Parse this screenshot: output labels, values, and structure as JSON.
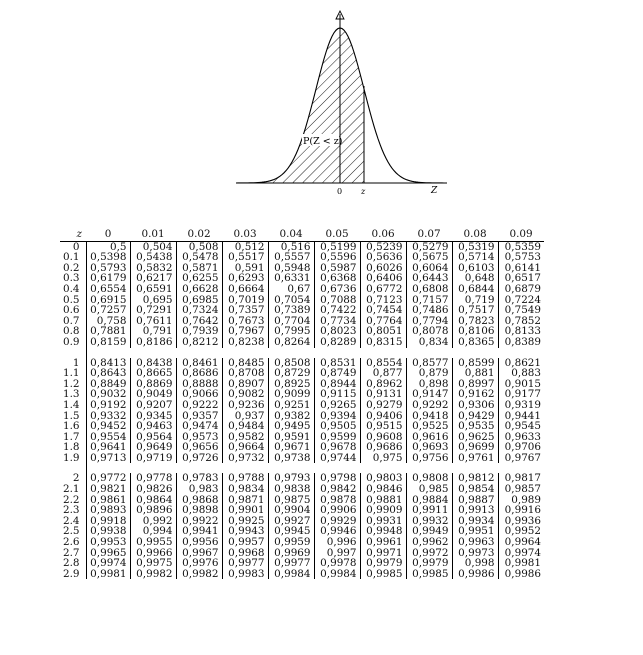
{
  "figure": {
    "curve_label": "P(Z < z)",
    "axis_origin_label": "0",
    "axis_z_label": "z",
    "axis_end_label": "Z"
  },
  "table": {
    "corner_label": "z",
    "columns": [
      "0",
      "0.01",
      "0.02",
      "0.03",
      "0.04",
      "0.05",
      "0.06",
      "0.07",
      "0.08",
      "0.09"
    ],
    "groups": [
      [
        {
          "z": "0",
          "values": [
            "0,5",
            "0,504",
            "0,508",
            "0,512",
            "0,516",
            "0,5199",
            "0,5239",
            "0,5279",
            "0,5319",
            "0,5359"
          ]
        },
        {
          "z": "0.1",
          "values": [
            "0,5398",
            "0,5438",
            "0,5478",
            "0,5517",
            "0,5557",
            "0,5596",
            "0,5636",
            "0,5675",
            "0,5714",
            "0,5753"
          ]
        },
        {
          "z": "0.2",
          "values": [
            "0,5793",
            "0,5832",
            "0,5871",
            "0,591",
            "0,5948",
            "0,5987",
            "0,6026",
            "0,6064",
            "0,6103",
            "0,6141"
          ]
        },
        {
          "z": "0.3",
          "values": [
            "0,6179",
            "0,6217",
            "0,6255",
            "0,6293",
            "0,6331",
            "0,6368",
            "0,6406",
            "0,6443",
            "0,648",
            "0,6517"
          ]
        },
        {
          "z": "0.4",
          "values": [
            "0,6554",
            "0,6591",
            "0,6628",
            "0,6664",
            "0,67",
            "0,6736",
            "0,6772",
            "0,6808",
            "0,6844",
            "0,6879"
          ]
        },
        {
          "z": "0.5",
          "values": [
            "0,6915",
            "0,695",
            "0,6985",
            "0,7019",
            "0,7054",
            "0,7088",
            "0,7123",
            "0,7157",
            "0,719",
            "0,7224"
          ]
        },
        {
          "z": "0.6",
          "values": [
            "0,7257",
            "0,7291",
            "0,7324",
            "0,7357",
            "0,7389",
            "0,7422",
            "0,7454",
            "0,7486",
            "0,7517",
            "0,7549"
          ]
        },
        {
          "z": "0.7",
          "values": [
            "0,758",
            "0,7611",
            "0,7642",
            "0,7673",
            "0,7704",
            "0,7734",
            "0,7764",
            "0,7794",
            "0,7823",
            "0,7852"
          ]
        },
        {
          "z": "0.8",
          "values": [
            "0,7881",
            "0,791",
            "0,7939",
            "0,7967",
            "0,7995",
            "0,8023",
            "0,8051",
            "0,8078",
            "0,8106",
            "0,8133"
          ]
        },
        {
          "z": "0.9",
          "values": [
            "0,8159",
            "0,8186",
            "0,8212",
            "0,8238",
            "0,8264",
            "0,8289",
            "0,8315",
            "0,834",
            "0,8365",
            "0,8389"
          ]
        }
      ],
      [
        {
          "z": "1",
          "values": [
            "0,8413",
            "0,8438",
            "0,8461",
            "0,8485",
            "0,8508",
            "0,8531",
            "0,8554",
            "0,8577",
            "0,8599",
            "0,8621"
          ]
        },
        {
          "z": "1.1",
          "values": [
            "0,8643",
            "0,8665",
            "0,8686",
            "0,8708",
            "0,8729",
            "0,8749",
            "0,877",
            "0,879",
            "0,881",
            "0,883"
          ]
        },
        {
          "z": "1.2",
          "values": [
            "0,8849",
            "0,8869",
            "0,8888",
            "0,8907",
            "0,8925",
            "0,8944",
            "0,8962",
            "0,898",
            "0,8997",
            "0,9015"
          ]
        },
        {
          "z": "1.3",
          "values": [
            "0,9032",
            "0,9049",
            "0,9066",
            "0,9082",
            "0,9099",
            "0,9115",
            "0,9131",
            "0,9147",
            "0,9162",
            "0,9177"
          ]
        },
        {
          "z": "1.4",
          "values": [
            "0,9192",
            "0,9207",
            "0,9222",
            "0,9236",
            "0,9251",
            "0,9265",
            "0,9279",
            "0,9292",
            "0,9306",
            "0,9319"
          ]
        },
        {
          "z": "1.5",
          "values": [
            "0,9332",
            "0,9345",
            "0,9357",
            "0,937",
            "0,9382",
            "0,9394",
            "0,9406",
            "0,9418",
            "0,9429",
            "0,9441"
          ]
        },
        {
          "z": "1.6",
          "values": [
            "0,9452",
            "0,9463",
            "0,9474",
            "0,9484",
            "0,9495",
            "0,9505",
            "0,9515",
            "0,9525",
            "0,9535",
            "0,9545"
          ]
        },
        {
          "z": "1.7",
          "values": [
            "0,9554",
            "0,9564",
            "0,9573",
            "0,9582",
            "0,9591",
            "0,9599",
            "0,9608",
            "0,9616",
            "0,9625",
            "0,9633"
          ]
        },
        {
          "z": "1.8",
          "values": [
            "0,9641",
            "0,9649",
            "0,9656",
            "0,9664",
            "0,9671",
            "0,9678",
            "0,9686",
            "0,9693",
            "0,9699",
            "0,9706"
          ]
        },
        {
          "z": "1.9",
          "values": [
            "0,9713",
            "0,9719",
            "0,9726",
            "0,9732",
            "0,9738",
            "0,9744",
            "0,975",
            "0,9756",
            "0,9761",
            "0,9767"
          ]
        }
      ],
      [
        {
          "z": "2",
          "values": [
            "0,9772",
            "0,9778",
            "0,9783",
            "0,9788",
            "0,9793",
            "0,9798",
            "0,9803",
            "0,9808",
            "0,9812",
            "0,9817"
          ]
        },
        {
          "z": "2.1",
          "values": [
            "0,9821",
            "0,9826",
            "0,983",
            "0,9834",
            "0,9838",
            "0,9842",
            "0,9846",
            "0,985",
            "0,9854",
            "0,9857"
          ]
        },
        {
          "z": "2.2",
          "values": [
            "0,9861",
            "0,9864",
            "0,9868",
            "0,9871",
            "0,9875",
            "0,9878",
            "0,9881",
            "0,9884",
            "0,9887",
            "0,989"
          ]
        },
        {
          "z": "2.3",
          "values": [
            "0,9893",
            "0,9896",
            "0,9898",
            "0,9901",
            "0,9904",
            "0,9906",
            "0,9909",
            "0,9911",
            "0,9913",
            "0,9916"
          ]
        },
        {
          "z": "2.4",
          "values": [
            "0,9918",
            "0,992",
            "0,9922",
            "0,9925",
            "0,9927",
            "0,9929",
            "0,9931",
            "0,9932",
            "0,9934",
            "0,9936"
          ]
        },
        {
          "z": "2.5",
          "values": [
            "0,9938",
            "0,994",
            "0,9941",
            "0,9943",
            "0,9945",
            "0,9946",
            "0,9948",
            "0,9949",
            "0,9951",
            "0,9952"
          ]
        },
        {
          "z": "2.6",
          "values": [
            "0,9953",
            "0,9955",
            "0,9956",
            "0,9957",
            "0,9959",
            "0,996",
            "0,9961",
            "0,9962",
            "0,9963",
            "0,9964"
          ]
        },
        {
          "z": "2.7",
          "values": [
            "0,9965",
            "0,9966",
            "0,9967",
            "0,9968",
            "0,9969",
            "0,997",
            "0,9971",
            "0,9972",
            "0,9973",
            "0,9974"
          ]
        },
        {
          "z": "2.8",
          "values": [
            "0,9974",
            "0,9975",
            "0,9976",
            "0,9977",
            "0,9977",
            "0,9978",
            "0,9979",
            "0,9979",
            "0,998",
            "0,9981"
          ]
        },
        {
          "z": "2.9",
          "values": [
            "0,9981",
            "0,9982",
            "0,9982",
            "0,9983",
            "0,9984",
            "0,9984",
            "0,9985",
            "0,9985",
            "0,9986",
            "0,9986"
          ]
        }
      ]
    ]
  }
}
